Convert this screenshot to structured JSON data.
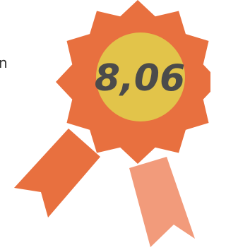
{
  "side_text": "n",
  "badge": {
    "score": "8,06"
  }
}
